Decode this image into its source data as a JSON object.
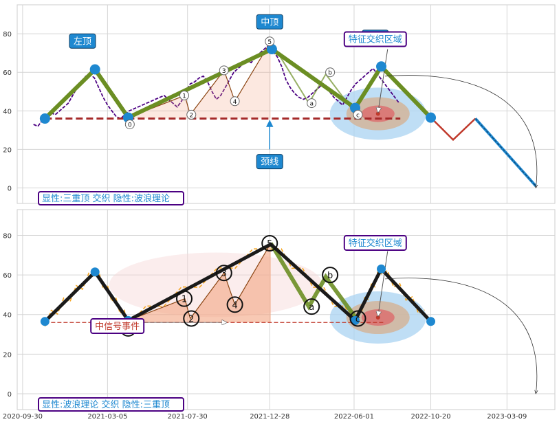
{
  "chart_data": [
    {
      "type": "line",
      "panel": "top",
      "ylim": [
        -8,
        95
      ],
      "yticks": [
        0,
        20,
        40,
        60,
        80
      ],
      "xlim": [
        "2020-09-20",
        "2023-06-05"
      ],
      "grid": true,
      "x_dates": [
        "2020-10-20",
        "2020-10-28",
        "2020-11-05",
        "2020-11-13",
        "2020-11-21",
        "2020-11-29",
        "2020-12-07",
        "2020-12-15",
        "2020-12-23",
        "2020-12-31",
        "2021-01-08",
        "2021-01-16",
        "2021-01-24",
        "2021-02-01",
        "2021-02-09",
        "2021-02-17",
        "2021-02-25",
        "2021-03-05",
        "2021-03-13",
        "2021-03-21",
        "2021-03-29",
        "2021-04-06",
        "2021-04-14",
        "2021-04-22",
        "2021-04-30",
        "2021-05-08",
        "2021-05-16",
        "2021-05-24",
        "2021-06-01",
        "2021-06-09",
        "2021-06-17",
        "2021-06-25",
        "2021-07-03",
        "2021-07-11",
        "2021-07-19",
        "2021-07-27",
        "2021-08-04",
        "2021-08-12",
        "2021-08-20",
        "2021-08-28",
        "2021-09-05",
        "2021-09-13",
        "2021-09-21",
        "2021-09-29",
        "2021-10-07",
        "2021-10-15",
        "2021-10-23",
        "2021-10-31",
        "2021-11-08",
        "2021-11-16",
        "2021-11-24",
        "2021-12-02",
        "2021-12-10",
        "2021-12-18",
        "2021-12-26",
        "2022-01-03",
        "2022-01-11",
        "2022-01-19",
        "2022-01-27",
        "2022-02-04",
        "2022-02-12",
        "2022-02-20",
        "2022-02-28",
        "2022-03-08",
        "2022-03-16",
        "2022-03-24",
        "2022-04-01",
        "2022-04-09",
        "2022-04-17",
        "2022-04-25",
        "2022-05-03",
        "2022-05-11",
        "2022-05-19",
        "2022-05-27",
        "2022-06-04",
        "2022-06-12",
        "2022-06-20",
        "2022-06-28",
        "2022-07-06",
        "2022-07-14",
        "2022-07-22",
        "2022-07-30",
        "2022-08-07",
        "2022-08-15",
        "2022-08-23"
      ],
      "price": [
        33,
        32,
        35,
        36,
        39,
        38,
        40,
        42,
        44,
        48,
        52,
        55,
        58,
        59,
        57,
        52,
        47,
        43,
        40,
        37,
        36,
        38,
        40,
        41,
        42,
        43,
        44,
        45,
        46,
        47,
        48,
        46,
        44,
        42,
        45,
        50,
        54,
        55,
        57,
        58,
        55,
        50,
        46,
        48,
        52,
        56,
        60,
        62,
        64,
        66,
        65,
        68,
        70,
        72,
        74,
        71,
        68,
        63,
        56,
        52,
        49,
        47,
        46,
        47,
        49,
        51,
        53,
        52,
        50,
        47,
        45,
        43,
        47,
        51,
        54,
        56,
        58,
        60,
        62,
        59,
        56,
        53,
        50,
        47,
        44
      ],
      "three_tops_line": [
        [
          "2020-11-10",
          36
        ],
        [
          "2021-02-10",
          61.5
        ],
        [
          "2021-04-12",
          36.5
        ],
        [
          "2022-01-01",
          72
        ],
        [
          "2022-06-03",
          41.5
        ],
        [
          "2022-07-21",
          63
        ],
        [
          "2022-10-20",
          36.5
        ]
      ],
      "wave_line": [
        [
          "2021-04-12",
          36.5
        ],
        [
          "2021-07-25",
          48
        ],
        [
          "2021-08-04",
          38
        ],
        [
          "2021-10-05",
          61
        ],
        [
          "2021-10-25",
          45
        ],
        [
          "2021-12-30",
          76
        ],
        [
          "2022-03-10",
          44
        ],
        [
          "2022-04-10",
          59
        ],
        [
          "2022-06-05",
          38
        ]
      ],
      "neckline": [
        [
          "2020-11-10",
          36
        ],
        [
          "2022-08-25",
          36
        ]
      ],
      "projection_red": [
        [
          "2022-10-20",
          36.5
        ],
        [
          "2022-11-30",
          25
        ],
        [
          "2023-01-10",
          36
        ]
      ],
      "projection_blue": [
        [
          "2023-01-10",
          36
        ],
        [
          "2023-05-01",
          1
        ]
      ],
      "annotations": [
        {
          "text": "左顶",
          "x": "2021-01-18",
          "y": 76
        },
        {
          "text": "中顶",
          "x": "2021-12-28",
          "y": 86
        },
        {
          "text": "右顶",
          "x": "2022-07-10",
          "y": 78
        },
        {
          "text": "特征交织区域",
          "x": "2022-07-10",
          "y": 77
        },
        {
          "text": "颈线",
          "x": "2021-12-28",
          "y": 13.5
        }
      ],
      "wave_labels": [
        {
          "text": "0",
          "x": "2021-04-15",
          "y": 33
        },
        {
          "text": "1",
          "x": "2021-07-24",
          "y": 48
        },
        {
          "text": "2",
          "x": "2021-08-06",
          "y": 38
        },
        {
          "text": "3",
          "x": "2021-10-05",
          "y": 61
        },
        {
          "text": "4",
          "x": "2021-10-25",
          "y": 45
        },
        {
          "text": "5",
          "x": "2021-12-28",
          "y": 76
        },
        {
          "text": "a",
          "x": "2022-03-15",
          "y": 44
        },
        {
          "text": "b",
          "x": "2022-04-18",
          "y": 60
        },
        {
          "text": "c",
          "x": "2022-06-08",
          "y": 38
        }
      ],
      "footer_label": "显性:三重顶 交织 隐性:波浪理论"
    },
    {
      "type": "line",
      "panel": "bottom",
      "ylim": [
        -8,
        93
      ],
      "yticks": [
        0,
        20,
        40,
        60,
        80
      ],
      "xlim": [
        "2020-09-20",
        "2023-06-05"
      ],
      "xticks": [
        "2020-09-30",
        "2021-03-05",
        "2021-07-30",
        "2021-12-28",
        "2022-06-01",
        "2022-10-20",
        "2023-03-09"
      ],
      "grid": true,
      "three_tops_line": [
        [
          "2020-11-10",
          36.5
        ],
        [
          "2021-02-10",
          61.5
        ],
        [
          "2021-04-12",
          37
        ],
        [
          "2021-12-30",
          75.5
        ],
        [
          "2022-06-03",
          37
        ],
        [
          "2022-07-21",
          63
        ],
        [
          "2022-10-20",
          36.5
        ]
      ],
      "wave_line": [
        [
          "2021-04-12",
          37
        ],
        [
          "2021-07-25",
          48
        ],
        [
          "2021-08-04",
          38
        ],
        [
          "2021-10-05",
          61
        ],
        [
          "2021-10-25",
          45
        ],
        [
          "2021-12-30",
          76
        ],
        [
          "2022-03-10",
          44
        ],
        [
          "2022-04-10",
          59
        ],
        [
          "2022-06-05",
          38
        ]
      ],
      "signal_line": [
        [
          "2020-11-10",
          36
        ],
        [
          "2022-07-25",
          36
        ]
      ],
      "annotations": [
        {
          "text": "特征交织区域",
          "x": "2022-07-10",
          "y": 76
        },
        {
          "text": "中信号事件",
          "x": "2021-02-10",
          "y": 34
        }
      ],
      "wave_labels": [
        {
          "text": "0",
          "x": "2021-04-12",
          "y": 33
        },
        {
          "text": "1",
          "x": "2021-07-24",
          "y": 48
        },
        {
          "text": "2",
          "x": "2021-08-06",
          "y": 38
        },
        {
          "text": "3",
          "x": "2021-10-05",
          "y": 61
        },
        {
          "text": "4",
          "x": "2021-10-25",
          "y": 45
        },
        {
          "text": "5",
          "x": "2021-12-28",
          "y": 76
        },
        {
          "text": "a",
          "x": "2022-03-15",
          "y": 44
        },
        {
          "text": "b",
          "x": "2022-04-18",
          "y": 60
        },
        {
          "text": "c",
          "x": "2022-06-08",
          "y": 38
        }
      ],
      "footer_label": "显性:波浪理论 交织 隐性:三重顶"
    }
  ],
  "colors": {
    "price_top": "#4b0082",
    "price_bottom": "#f5a623",
    "three_tops_top": "#6b8e23",
    "three_tops_bottom": "#1a1a1a",
    "marker": "#1e88d0",
    "neckline": "#a52a2a",
    "wave_fill": "#f4a582",
    "label_bg": "#1e88d0",
    "label_border": "#4b0082",
    "footer_text": "#1e88d0"
  }
}
